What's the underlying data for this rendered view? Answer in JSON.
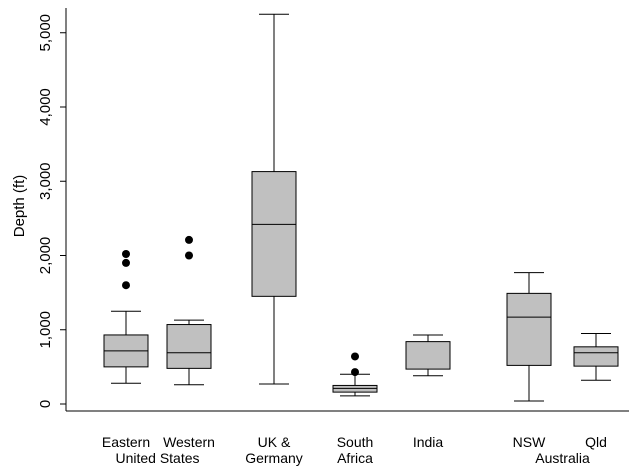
{
  "chart_data": {
    "type": "box",
    "ylabel": "Depth (ft)",
    "ylim": [
      0,
      5300
    ],
    "yticks": [
      {
        "value": 0,
        "label": "0"
      },
      {
        "value": 1000,
        "label": "1,000"
      },
      {
        "value": 2000,
        "label": "2,000"
      },
      {
        "value": 3000,
        "label": "3,000"
      },
      {
        "value": 4000,
        "label": "4,000"
      },
      {
        "value": 5000,
        "label": "5,000"
      }
    ],
    "grid": false,
    "series": [
      {
        "name": "Eastern",
        "lw": 280,
        "q1": 500,
        "median": 715,
        "q3": 930,
        "uw": 1250,
        "outliers": [
          1600,
          1900,
          2020
        ]
      },
      {
        "name": "Western",
        "lw": 260,
        "q1": 480,
        "median": 690,
        "q3": 1070,
        "uw": 1130,
        "outliers": [
          2000,
          2210
        ]
      },
      {
        "name": "UK & Germany",
        "lw": 270,
        "q1": 1450,
        "median": 2420,
        "q3": 3130,
        "uw": 5250,
        "outliers": []
      },
      {
        "name": "South Africa",
        "lw": 110,
        "q1": 160,
        "median": 210,
        "q3": 250,
        "uw": 400,
        "outliers": [
          430,
          640
        ]
      },
      {
        "name": "India",
        "lw": 380,
        "q1": 470,
        "median": null,
        "q3": 840,
        "uw": 930,
        "outliers": []
      },
      {
        "name": "NSW",
        "lw": 40,
        "q1": 520,
        "median": 1170,
        "q3": 1490,
        "uw": 1770,
        "outliers": []
      },
      {
        "name": "Qld",
        "lw": 320,
        "q1": 510,
        "median": 690,
        "q3": 770,
        "uw": 950,
        "outliers": []
      }
    ],
    "x_labels": [
      {
        "lines": [
          "Eastern"
        ],
        "col": 0
      },
      {
        "lines": [
          "Western"
        ],
        "col": 1
      },
      {
        "lines": [
          "United States"
        ],
        "between": [
          0,
          1
        ],
        "row": 1
      },
      {
        "lines": [
          "UK &",
          "Germany"
        ],
        "col": 2
      },
      {
        "lines": [
          "South",
          "Africa"
        ],
        "col": 3
      },
      {
        "lines": [
          "India"
        ],
        "col": 4
      },
      {
        "lines": [
          "NSW"
        ],
        "col": 5
      },
      {
        "lines": [
          "Qld"
        ],
        "col": 6
      },
      {
        "lines": [
          "Australia"
        ],
        "between": [
          5,
          6
        ],
        "row": 1
      }
    ]
  },
  "colors": {
    "box_fill": "#c0c0c0",
    "line": "#000000",
    "outlier": "#000000"
  }
}
